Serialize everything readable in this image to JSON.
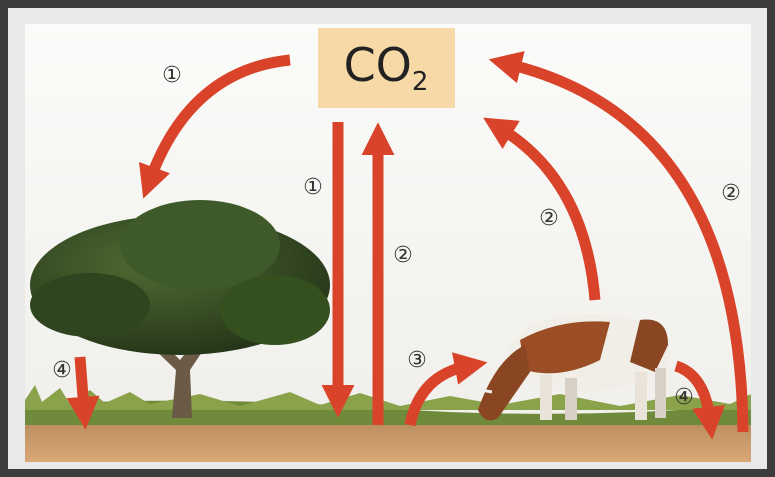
{
  "box": {
    "main": "CO",
    "subscript": "2"
  },
  "labels": [
    "①",
    "①",
    "②",
    "②",
    "②",
    "③",
    "④",
    "④"
  ]
}
